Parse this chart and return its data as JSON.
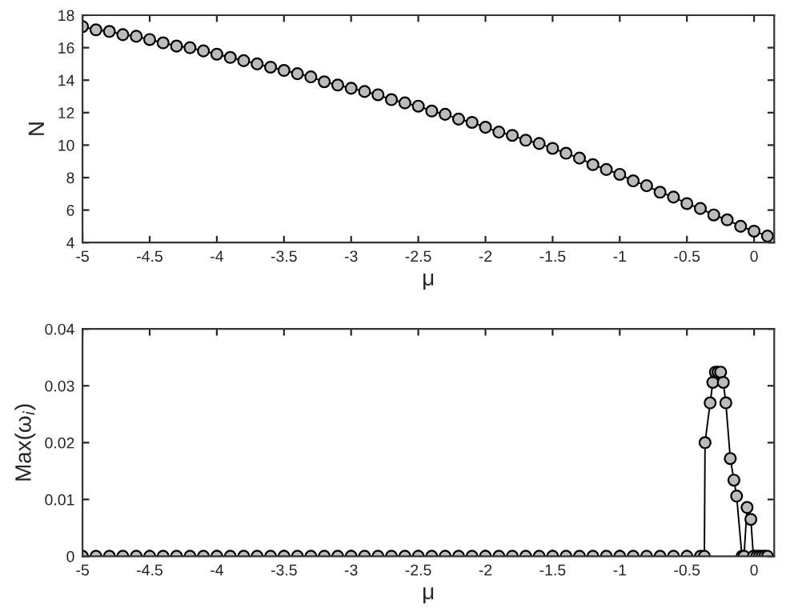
{
  "chart_data": [
    {
      "type": "line",
      "xlabel": "μ",
      "ylabel": "N",
      "xlim": [
        -5,
        0.15
      ],
      "ylim": [
        4,
        18
      ],
      "xticks": [
        -5,
        -4.5,
        -4,
        -3.5,
        -3,
        -2.5,
        -2,
        -1.5,
        -1,
        -0.5,
        0
      ],
      "yticks": [
        4,
        6,
        8,
        10,
        12,
        14,
        16,
        18
      ],
      "marker": "circle",
      "line_style": "solid",
      "grid": false,
      "legend": false,
      "series": [
        {
          "color": "#000000",
          "x": [
            -5.0,
            -4.9,
            -4.8,
            -4.7,
            -4.6,
            -4.5,
            -4.4,
            -4.3,
            -4.2,
            -4.1,
            -4.0,
            -3.9,
            -3.8,
            -3.7,
            -3.6,
            -3.5,
            -3.4,
            -3.3,
            -3.2,
            -3.1,
            -3.0,
            -2.9,
            -2.8,
            -2.7,
            -2.6,
            -2.5,
            -2.4,
            -2.3,
            -2.2,
            -2.1,
            -2.0,
            -1.9,
            -1.8,
            -1.7,
            -1.6,
            -1.5,
            -1.4,
            -1.3,
            -1.2,
            -1.1,
            -1.0,
            -0.9,
            -0.8,
            -0.7,
            -0.6,
            -0.5,
            -0.4,
            -0.3,
            -0.2,
            -0.1,
            0.0,
            0.1
          ],
          "values": [
            17.3,
            17.1,
            17.0,
            16.8,
            16.7,
            16.5,
            16.3,
            16.1,
            16.0,
            15.8,
            15.6,
            15.4,
            15.2,
            15.0,
            14.8,
            14.6,
            14.4,
            14.2,
            13.9,
            13.7,
            13.5,
            13.3,
            13.1,
            12.8,
            12.6,
            12.4,
            12.1,
            11.9,
            11.6,
            11.4,
            11.1,
            10.8,
            10.6,
            10.3,
            10.1,
            9.8,
            9.5,
            9.2,
            8.8,
            8.5,
            8.2,
            7.8,
            7.5,
            7.1,
            6.8,
            6.4,
            6.1,
            5.7,
            5.4,
            5.0,
            4.7,
            4.4
          ]
        }
      ]
    },
    {
      "type": "line",
      "xlabel": "μ",
      "ylabel": "Max(ω$_{i}$)",
      "xlim": [
        -5,
        0.15
      ],
      "ylim": [
        0,
        0.04
      ],
      "xticks": [
        -5,
        -4.5,
        -4,
        -3.5,
        -3,
        -2.5,
        -2,
        -1.5,
        -1,
        -0.5,
        0
      ],
      "yticks": [
        0,
        0.01,
        0.02,
        0.03,
        0.04
      ],
      "marker": "circle",
      "line_style": "solid",
      "grid": false,
      "legend": false,
      "series": [
        {
          "color": "#000000",
          "x": [
            -5.0,
            -4.9,
            -4.8,
            -4.7,
            -4.6,
            -4.5,
            -4.4,
            -4.3,
            -4.2,
            -4.1,
            -4.0,
            -3.9,
            -3.8,
            -3.7,
            -3.6,
            -3.5,
            -3.4,
            -3.3,
            -3.2,
            -3.1,
            -3.0,
            -2.9,
            -2.8,
            -2.7,
            -2.6,
            -2.5,
            -2.4,
            -2.3,
            -2.2,
            -2.1,
            -2.0,
            -1.9,
            -1.8,
            -1.7,
            -1.6,
            -1.5,
            -1.4,
            -1.3,
            -1.2,
            -1.1,
            -1.0,
            -0.9,
            -0.8,
            -0.7,
            -0.6,
            -0.5,
            -0.4,
            -0.37,
            -0.365,
            -0.327,
            -0.307,
            -0.288,
            -0.268,
            -0.249,
            -0.229,
            -0.21,
            -0.177,
            -0.15,
            -0.13,
            -0.09,
            -0.075,
            -0.052,
            -0.024,
            -0.005,
            0.02,
            0.04,
            0.06,
            0.08,
            0.1
          ],
          "values": [
            0,
            0,
            0,
            0,
            0,
            0,
            0,
            0,
            0,
            0,
            0,
            0,
            0,
            0,
            0,
            0,
            0,
            0,
            0,
            0,
            0,
            0,
            0,
            0,
            0,
            0,
            0,
            0,
            0,
            0,
            0,
            0,
            0,
            0,
            0,
            0,
            0,
            0,
            0,
            0,
            0,
            0,
            0,
            0,
            0,
            0,
            0,
            0,
            0.02,
            0.027,
            0.0306,
            0.0324,
            0.0324,
            0.0324,
            0.0306,
            0.027,
            0.0172,
            0.0134,
            0.0106,
            0,
            0,
            0.0086,
            0.0065,
            0,
            0,
            0,
            0,
            0,
            0
          ]
        }
      ]
    }
  ]
}
